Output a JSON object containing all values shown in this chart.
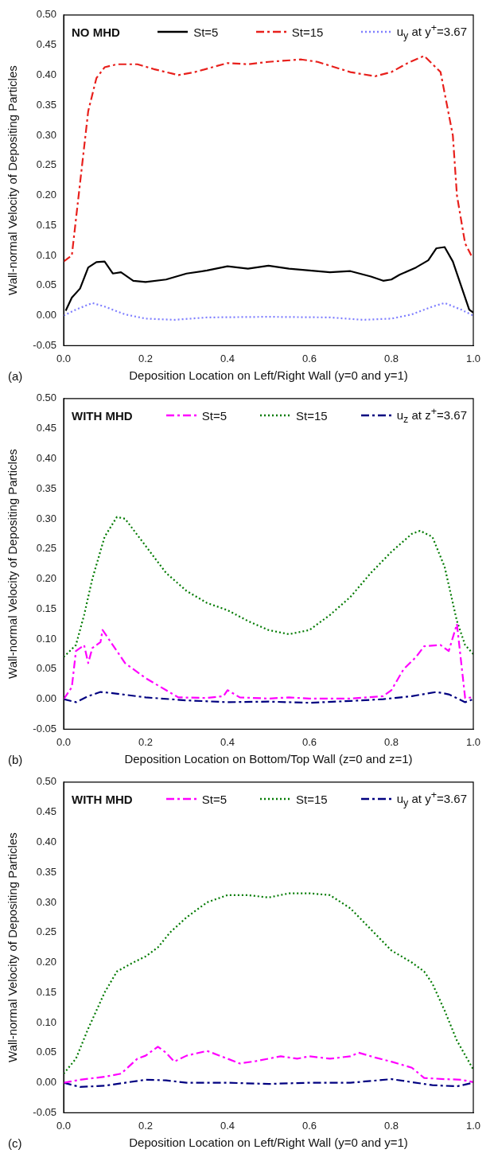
{
  "chart_data": [
    {
      "type": "line",
      "xlabel": "Deposition Location on Left/Right Wall (y=0 and y=1)",
      "ylabel": "Wall-normal Velocity of Depositing Particles",
      "legend_title": "NO MHD",
      "legend": "top",
      "grid": false,
      "marker": "none",
      "annotations": [
        "(a)"
      ],
      "xlim": [
        0,
        1
      ],
      "xticks": [
        {
          "value": 0,
          "label": "0.0"
        },
        {
          "value": 0.2,
          "label": "0.2"
        },
        {
          "value": 0.4,
          "label": "0.4"
        },
        {
          "value": 0.6,
          "label": "0.6"
        },
        {
          "value": 0.8,
          "label": "0.8"
        },
        {
          "value": 1,
          "label": "1.0"
        }
      ],
      "ylim": [
        -0.05,
        0.5
      ],
      "yticks": [
        {
          "value": -0.05,
          "label": "-0.05"
        },
        {
          "value": 0,
          "label": "0.00"
        },
        {
          "value": 0.05,
          "label": "0.05"
        },
        {
          "value": 0.1,
          "label": "0.10"
        },
        {
          "value": 0.15,
          "label": "0.15"
        },
        {
          "value": 0.2,
          "label": "0.20"
        },
        {
          "value": 0.25,
          "label": "0.25"
        },
        {
          "value": 0.3,
          "label": "0.30"
        },
        {
          "value": 0.35,
          "label": "0.35"
        },
        {
          "value": 0.4,
          "label": "0.40"
        },
        {
          "value": 0.45,
          "label": "0.45"
        },
        {
          "value": 0.5,
          "label": "0.50"
        }
      ],
      "series": [
        {
          "name": "St=5",
          "color": "#000000",
          "line_style": "solid",
          "x": [
            0.005,
            0.02,
            0.04,
            0.06,
            0.08,
            0.1,
            0.12,
            0.14,
            0.17,
            0.2,
            0.25,
            0.3,
            0.35,
            0.4,
            0.45,
            0.5,
            0.55,
            0.6,
            0.65,
            0.7,
            0.75,
            0.78,
            0.8,
            0.82,
            0.86,
            0.89,
            0.91,
            0.93,
            0.95,
            0.97,
            0.99,
            1.0
          ],
          "values": [
            0.008,
            0.03,
            0.045,
            0.08,
            0.089,
            0.09,
            0.07,
            0.072,
            0.058,
            0.056,
            0.06,
            0.07,
            0.075,
            0.082,
            0.078,
            0.083,
            0.078,
            0.075,
            0.072,
            0.074,
            0.065,
            0.058,
            0.06,
            0.068,
            0.08,
            0.092,
            0.112,
            0.114,
            0.09,
            0.05,
            0.01,
            0.005
          ]
        },
        {
          "name": "St=15",
          "color": "#e8201c",
          "line_style": "dashed",
          "x": [
            0,
            0.02,
            0.04,
            0.06,
            0.08,
            0.1,
            0.13,
            0.18,
            0.22,
            0.28,
            0.32,
            0.4,
            0.45,
            0.5,
            0.58,
            0.62,
            0.7,
            0.76,
            0.8,
            0.84,
            0.88,
            0.92,
            0.95,
            0.96,
            0.98,
            0.995
          ],
          "values": [
            0.09,
            0.1,
            0.22,
            0.34,
            0.395,
            0.413,
            0.418,
            0.418,
            0.41,
            0.4,
            0.405,
            0.42,
            0.418,
            0.422,
            0.426,
            0.422,
            0.405,
            0.398,
            0.405,
            0.42,
            0.432,
            0.405,
            0.3,
            0.2,
            0.12,
            0.1
          ]
        },
        {
          "name": "u$_{y}$ at y$^{+}$=3.67",
          "color": "#7f7fff",
          "line_style": "dotted",
          "x": [
            0,
            0.03,
            0.07,
            0.1,
            0.15,
            0.2,
            0.27,
            0.35,
            0.5,
            0.65,
            0.73,
            0.8,
            0.85,
            0.9,
            0.93,
            0.97,
            1.0
          ],
          "values": [
            0,
            0.01,
            0.021,
            0.015,
            0.002,
            -0.005,
            -0.007,
            -0.003,
            -0.002,
            -0.003,
            -0.007,
            -0.005,
            0.002,
            0.015,
            0.021,
            0.01,
            0
          ]
        }
      ]
    },
    {
      "type": "line",
      "xlabel": "Deposition Location on Bottom/Top Wall (z=0 and z=1)",
      "ylabel": "Wall-normal Velocity of Depositing Particles",
      "legend_title": "WITH MHD",
      "legend": "top",
      "grid": false,
      "marker": "none",
      "annotations": [
        "(b)"
      ],
      "xlim": [
        0,
        1
      ],
      "xticks": [
        {
          "value": 0,
          "label": "0.0"
        },
        {
          "value": 0.2,
          "label": "0.2"
        },
        {
          "value": 0.4,
          "label": "0.4"
        },
        {
          "value": 0.6,
          "label": "0.6"
        },
        {
          "value": 0.8,
          "label": "0.8"
        },
        {
          "value": 1,
          "label": "1.0"
        }
      ],
      "ylim": [
        -0.05,
        0.5
      ],
      "yticks": [
        {
          "value": -0.05,
          "label": "-0.05"
        },
        {
          "value": 0,
          "label": "0.00"
        },
        {
          "value": 0.05,
          "label": "0.05"
        },
        {
          "value": 0.1,
          "label": "0.10"
        },
        {
          "value": 0.15,
          "label": "0.15"
        },
        {
          "value": 0.2,
          "label": "0.20"
        },
        {
          "value": 0.25,
          "label": "0.25"
        },
        {
          "value": 0.3,
          "label": "0.30"
        },
        {
          "value": 0.35,
          "label": "0.35"
        },
        {
          "value": 0.4,
          "label": "0.40"
        },
        {
          "value": 0.45,
          "label": "0.45"
        },
        {
          "value": 0.5,
          "label": "0.50"
        }
      ],
      "series": [
        {
          "name": "St=5",
          "color": "#ff00ff",
          "line_style": "dashed",
          "x": [
            0,
            0.02,
            0.03,
            0.05,
            0.06,
            0.07,
            0.09,
            0.095,
            0.11,
            0.15,
            0.2,
            0.25,
            0.28,
            0.35,
            0.39,
            0.4,
            0.43,
            0.5,
            0.55,
            0.6,
            0.7,
            0.78,
            0.8,
            0.83,
            0.86,
            0.88,
            0.92,
            0.94,
            0.96,
            0.98,
            1.0
          ],
          "values": [
            0,
            0.02,
            0.08,
            0.09,
            0.06,
            0.085,
            0.095,
            0.115,
            0.1,
            0.06,
            0.035,
            0.015,
            0.003,
            0.002,
            0.005,
            0.015,
            0.003,
            0.001,
            0.003,
            0.001,
            0.001,
            0.005,
            0.015,
            0.05,
            0.07,
            0.088,
            0.09,
            0.08,
            0.125,
            0.002,
            0.003
          ]
        },
        {
          "name": "St=15",
          "color": "#007a00",
          "line_style": "dotted",
          "x": [
            0,
            0.03,
            0.05,
            0.07,
            0.1,
            0.13,
            0.15,
            0.2,
            0.25,
            0.3,
            0.35,
            0.4,
            0.45,
            0.5,
            0.55,
            0.6,
            0.65,
            0.7,
            0.75,
            0.8,
            0.85,
            0.87,
            0.9,
            0.93,
            0.96,
            0.98,
            1.0
          ],
          "values": [
            0.07,
            0.09,
            0.14,
            0.2,
            0.27,
            0.303,
            0.3,
            0.255,
            0.21,
            0.18,
            0.16,
            0.148,
            0.13,
            0.115,
            0.108,
            0.115,
            0.14,
            0.17,
            0.21,
            0.245,
            0.275,
            0.28,
            0.27,
            0.22,
            0.13,
            0.09,
            0.075
          ]
        },
        {
          "name": "u$_{z}$ at z$^{+}$=3.67",
          "color": "#000080",
          "line_style": "dashed",
          "x": [
            0,
            0.03,
            0.06,
            0.09,
            0.12,
            0.2,
            0.3,
            0.4,
            0.5,
            0.6,
            0.7,
            0.78,
            0.85,
            0.91,
            0.94,
            0.98,
            1.0
          ],
          "values": [
            0,
            -0.005,
            0.005,
            0.012,
            0.01,
            0.003,
            -0.002,
            -0.005,
            -0.004,
            -0.006,
            -0.003,
            0,
            0.005,
            0.012,
            0.008,
            -0.005,
            0
          ]
        }
      ]
    },
    {
      "type": "line",
      "xlabel": "Deposition Location on Left/Right Wall (y=0 and y=1)",
      "ylabel": "Wall-normal Velocity of Depositing Particles",
      "legend_title": "WITH MHD",
      "legend": "top",
      "grid": false,
      "marker": "none",
      "annotations": [
        "(c)"
      ],
      "xlim": [
        0,
        1
      ],
      "xticks": [
        {
          "value": 0,
          "label": "0.0"
        },
        {
          "value": 0.2,
          "label": "0.2"
        },
        {
          "value": 0.4,
          "label": "0.4"
        },
        {
          "value": 0.6,
          "label": "0.6"
        },
        {
          "value": 0.8,
          "label": "0.8"
        },
        {
          "value": 1,
          "label": "1.0"
        }
      ],
      "ylim": [
        -0.05,
        0.5
      ],
      "yticks": [
        {
          "value": -0.05,
          "label": "-0.05"
        },
        {
          "value": 0,
          "label": "0.00"
        },
        {
          "value": 0.05,
          "label": "0.05"
        },
        {
          "value": 0.1,
          "label": "0.10"
        },
        {
          "value": 0.15,
          "label": "0.15"
        },
        {
          "value": 0.2,
          "label": "0.20"
        },
        {
          "value": 0.25,
          "label": "0.25"
        },
        {
          "value": 0.3,
          "label": "0.30"
        },
        {
          "value": 0.35,
          "label": "0.35"
        },
        {
          "value": 0.4,
          "label": "0.40"
        },
        {
          "value": 0.45,
          "label": "0.45"
        },
        {
          "value": 0.5,
          "label": "0.50"
        }
      ],
      "series": [
        {
          "name": "St=5",
          "color": "#ff00ff",
          "line_style": "dashed",
          "x": [
            0,
            0.04,
            0.1,
            0.14,
            0.18,
            0.2,
            0.23,
            0.25,
            0.27,
            0.3,
            0.35,
            0.4,
            0.43,
            0.47,
            0.53,
            0.57,
            0.6,
            0.65,
            0.7,
            0.72,
            0.76,
            0.8,
            0.85,
            0.88,
            0.93,
            0.97,
            1.0
          ],
          "values": [
            0,
            0.005,
            0.01,
            0.015,
            0.04,
            0.045,
            0.06,
            0.05,
            0.035,
            0.045,
            0.053,
            0.04,
            0.032,
            0.036,
            0.044,
            0.04,
            0.044,
            0.04,
            0.044,
            0.05,
            0.042,
            0.035,
            0.025,
            0.008,
            0.006,
            0.005,
            0.001
          ]
        },
        {
          "name": "St=15",
          "color": "#007a00",
          "line_style": "dotted",
          "x": [
            0,
            0.03,
            0.06,
            0.1,
            0.13,
            0.17,
            0.2,
            0.23,
            0.26,
            0.3,
            0.35,
            0.4,
            0.45,
            0.5,
            0.55,
            0.6,
            0.65,
            0.7,
            0.75,
            0.8,
            0.85,
            0.88,
            0.9,
            0.93,
            0.96,
            1.0
          ],
          "values": [
            0.015,
            0.04,
            0.09,
            0.15,
            0.185,
            0.2,
            0.21,
            0.225,
            0.25,
            0.275,
            0.3,
            0.312,
            0.312,
            0.308,
            0.315,
            0.315,
            0.312,
            0.29,
            0.255,
            0.22,
            0.2,
            0.185,
            0.165,
            0.12,
            0.07,
            0.022
          ]
        },
        {
          "name": "u$_{y}$ at y$^{+}$=3.67",
          "color": "#000080",
          "line_style": "dashed",
          "x": [
            0,
            0.04,
            0.1,
            0.15,
            0.2,
            0.25,
            0.3,
            0.4,
            0.5,
            0.6,
            0.7,
            0.75,
            0.8,
            0.85,
            0.9,
            0.96,
            1.0
          ],
          "values": [
            0,
            -0.007,
            -0.005,
            0,
            0.005,
            0.004,
            0,
            0,
            -0.002,
            0,
            0,
            0.003,
            0.006,
            0.001,
            -0.004,
            -0.006,
            0
          ]
        }
      ]
    }
  ]
}
